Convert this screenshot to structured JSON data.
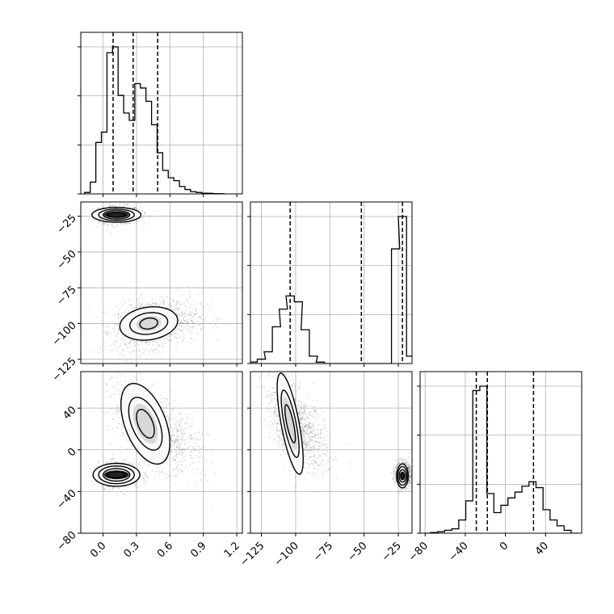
{
  "chart_data": [
    {
      "type": "histogram",
      "panel": "p1",
      "xlim": [
        -0.2,
        1.25
      ],
      "grid": true,
      "quantiles": [
        0.09,
        0.27,
        0.49
      ],
      "bins": [
        {
          "x": -0.14,
          "h": 0.01
        },
        {
          "x": -0.09,
          "h": 0.08
        },
        {
          "x": -0.04,
          "h": 0.35
        },
        {
          "x": 0.01,
          "h": 0.42
        },
        {
          "x": 0.06,
          "h": 0.96
        },
        {
          "x": 0.11,
          "h": 1.0
        },
        {
          "x": 0.16,
          "h": 0.67
        },
        {
          "x": 0.21,
          "h": 0.55
        },
        {
          "x": 0.26,
          "h": 0.5
        },
        {
          "x": 0.31,
          "h": 0.75
        },
        {
          "x": 0.36,
          "h": 0.72
        },
        {
          "x": 0.41,
          "h": 0.63
        },
        {
          "x": 0.46,
          "h": 0.47
        },
        {
          "x": 0.51,
          "h": 0.28
        },
        {
          "x": 0.56,
          "h": 0.16
        },
        {
          "x": 0.61,
          "h": 0.11
        },
        {
          "x": 0.66,
          "h": 0.09
        },
        {
          "x": 0.71,
          "h": 0.05
        },
        {
          "x": 0.76,
          "h": 0.03
        },
        {
          "x": 0.81,
          "h": 0.015
        },
        {
          "x": 0.86,
          "h": 0.01
        },
        {
          "x": 0.91,
          "h": 0.005
        },
        {
          "x": 0.96,
          "h": 0.004
        },
        {
          "x": 1.01,
          "h": 0.002
        },
        {
          "x": 1.06,
          "h": 0.001
        }
      ]
    },
    {
      "type": "histogram",
      "panel": "p4",
      "xlim": [
        -133,
        -15
      ],
      "grid": true,
      "quantiles": [
        -104,
        -52,
        -22
      ],
      "bins": [
        {
          "x": -131,
          "h": 0.01
        },
        {
          "x": -125,
          "h": 0.03
        },
        {
          "x": -120,
          "h": 0.08
        },
        {
          "x": -114,
          "h": 0.25
        },
        {
          "x": -109,
          "h": 0.37
        },
        {
          "x": -104,
          "h": 0.46
        },
        {
          "x": -98,
          "h": 0.42
        },
        {
          "x": -93,
          "h": 0.23
        },
        {
          "x": -87,
          "h": 0.05
        },
        {
          "x": -82,
          "h": 0.01
        },
        {
          "x": -76,
          "h": 0.0
        },
        {
          "x": -71,
          "h": 0.0
        },
        {
          "x": -65,
          "h": 0.0
        },
        {
          "x": -60,
          "h": 0.0
        },
        {
          "x": -55,
          "h": 0.0
        },
        {
          "x": -49,
          "h": 0.0
        },
        {
          "x": -44,
          "h": 0.0
        },
        {
          "x": -38,
          "h": 0.0
        },
        {
          "x": -33,
          "h": 0.0
        },
        {
          "x": -27,
          "h": 0.78
        },
        {
          "x": -22,
          "h": 1.0
        },
        {
          "x": -16,
          "h": 0.05
        }
      ]
    },
    {
      "type": "histogram",
      "panel": "p6",
      "xlim": [
        -85,
        76
      ],
      "grid": true,
      "quantiles": [
        -29,
        -18,
        28
      ],
      "bins": [
        {
          "x": -78,
          "h": 0.0
        },
        {
          "x": -71,
          "h": 0.005
        },
        {
          "x": -64,
          "h": 0.01
        },
        {
          "x": -57,
          "h": 0.02
        },
        {
          "x": -50,
          "h": 0.03
        },
        {
          "x": -43,
          "h": 0.09
        },
        {
          "x": -36,
          "h": 0.22
        },
        {
          "x": -29,
          "h": 0.97
        },
        {
          "x": -22,
          "h": 1.0
        },
        {
          "x": -15,
          "h": 0.27
        },
        {
          "x": -8,
          "h": 0.14
        },
        {
          "x": -1,
          "h": 0.19
        },
        {
          "x": 6,
          "h": 0.24
        },
        {
          "x": 13,
          "h": 0.28
        },
        {
          "x": 20,
          "h": 0.32
        },
        {
          "x": 27,
          "h": 0.35
        },
        {
          "x": 34,
          "h": 0.31
        },
        {
          "x": 41,
          "h": 0.16
        },
        {
          "x": 48,
          "h": 0.09
        },
        {
          "x": 55,
          "h": 0.05
        },
        {
          "x": 62,
          "h": 0.02
        },
        {
          "x": 69,
          "h": 0.0
        }
      ]
    },
    {
      "type": "scatter",
      "panel": "p2",
      "xlim": [
        -0.2,
        1.25
      ],
      "ylim": [
        -128,
        -15
      ],
      "grid": true,
      "clusters": [
        {
          "weight": 0.4,
          "cx": 0.12,
          "cy": -24,
          "sx": 0.08,
          "sy": 3.2,
          "rho": 0.0
        },
        {
          "weight": 0.6,
          "cx": 0.42,
          "cy": -100,
          "sx": 0.16,
          "sy": 8.5,
          "rho": 0.25
        }
      ],
      "contours": [
        {
          "cx": 0.12,
          "cy": -24,
          "levels": [
            [
              0.08,
              1.6
            ],
            [
              0.12,
              2.9
            ],
            [
              0.16,
              4.0
            ],
            [
              0.22,
              5.2
            ]
          ]
        },
        {
          "cx": 0.41,
          "cy": -100,
          "levels": [
            [
              0.08,
              3.8
            ],
            [
              0.17,
              7.5
            ],
            [
              0.26,
              11.5
            ]
          ]
        }
      ]
    },
    {
      "type": "scatter",
      "panel": "p3",
      "xlim": [
        -0.2,
        1.25
      ],
      "ylim": [
        -80,
        75
      ],
      "grid": true,
      "clusters": [
        {
          "weight": 0.4,
          "cx": 0.12,
          "cy": -24,
          "sx": 0.08,
          "sy": 6.0,
          "rho": 0.0
        },
        {
          "weight": 0.6,
          "cx": 0.42,
          "cy": 22,
          "sx": 0.16,
          "sy": 20.0,
          "rho": -0.6
        }
      ],
      "contours": [
        {
          "cx": 0.12,
          "cy": -24,
          "levels": [
            [
              0.08,
              3.0
            ],
            [
              0.12,
              6.0
            ],
            [
              0.16,
              8.5
            ],
            [
              0.21,
              11.0
            ]
          ]
        },
        {
          "cx": 0.38,
          "cy": 25,
          "levels": [
            [
              0.08,
              12.0
            ],
            [
              0.15,
              22.0
            ],
            [
              0.22,
              34.0
            ]
          ]
        }
      ]
    },
    {
      "type": "scatter",
      "panel": "p5",
      "xlim": [
        -133,
        -15
      ],
      "ylim": [
        -80,
        75
      ],
      "grid": true,
      "clusters": [
        {
          "weight": 0.6,
          "cx": -101,
          "cy": 22,
          "sx": 8.5,
          "sy": 20.0,
          "rho": -0.55
        },
        {
          "weight": 0.4,
          "cx": -22,
          "cy": -24,
          "sx": 2.6,
          "sy": 6.0,
          "rho": 0.0
        }
      ],
      "contours": [
        {
          "cx": -104,
          "cy": 25,
          "levels": [
            [
              3.8,
              12.0
            ],
            [
              6.5,
              22.0
            ],
            [
              9.5,
              34.0
            ]
          ]
        },
        {
          "cx": -22,
          "cy": -25,
          "levels": [
            [
              1.3,
              3.0
            ],
            [
              2.4,
              6.0
            ],
            [
              3.4,
              9.0
            ],
            [
              4.2,
              11.5
            ]
          ]
        }
      ]
    }
  ],
  "axes": {
    "p2_y_ticks": [
      -25,
      -50,
      -75,
      -100,
      -125
    ],
    "p3_y_ticks": [
      40,
      0,
      -40,
      -80
    ],
    "p3_x_ticks": [
      0.0,
      0.3,
      0.6,
      0.9,
      1.2
    ],
    "p5_x_ticks": [
      -125,
      -100,
      -75,
      -50,
      -25
    ],
    "p6_x_ticks": [
      -80,
      -40,
      0,
      40
    ],
    "p2_y_labels": [
      "−25",
      "−50",
      "−75",
      "−100",
      "−125"
    ],
    "p3_y_labels": [
      "40",
      "0",
      "−40",
      "−80"
    ],
    "p3_x_labels": [
      "0.0",
      "0.3",
      "0.6",
      "0.9",
      "1.2"
    ],
    "p5_x_labels": [
      "−125",
      "−100",
      "−75",
      "−50",
      "−25"
    ],
    "p6_x_labels": [
      "−80",
      "−40",
      "0",
      "40"
    ]
  }
}
